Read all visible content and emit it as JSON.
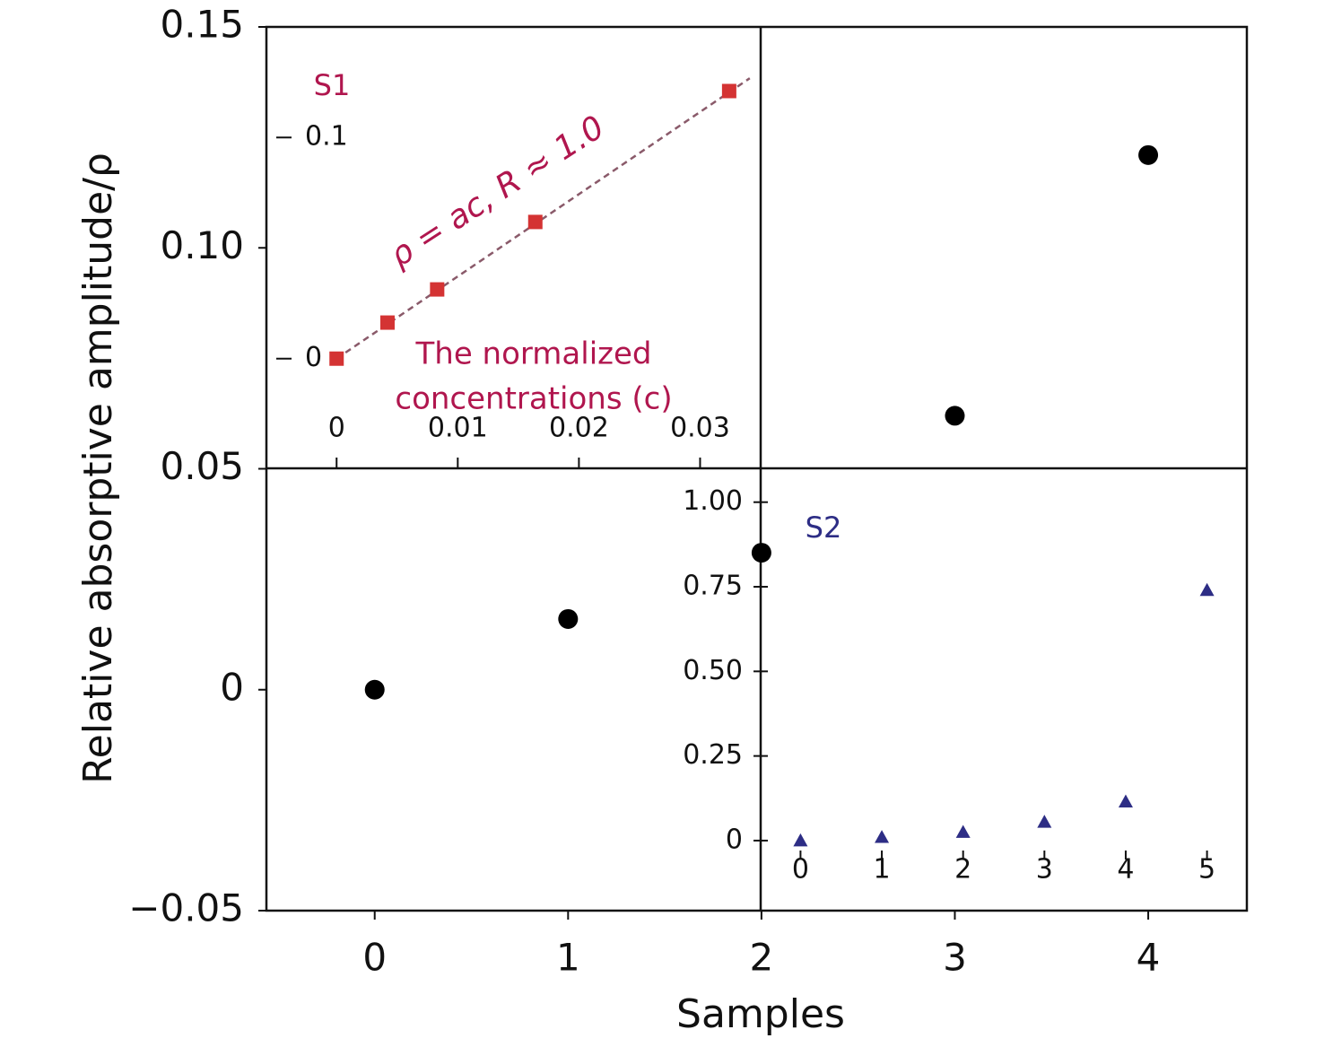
{
  "chart_data": [
    {
      "type": "scatter",
      "xlabel": "Samples",
      "ylabel": "Relative absorptive amplitude/ρ",
      "x": [
        0,
        1,
        2,
        3,
        4
      ],
      "series": [
        {
          "color": "#000000",
          "marker": "circle",
          "values": [
            0,
            0.016,
            0.031,
            0.062,
            0.121
          ]
        }
      ],
      "xlim": [
        -0.56,
        4.51
      ],
      "xticks": [
        0,
        1,
        2,
        3,
        4
      ],
      "ylim": [
        -0.05,
        0.15
      ],
      "yticks": [
        {
          "value": -0.05,
          "label": "−0.05"
        },
        0,
        0.05,
        {
          "value": 0.1,
          "label": "0.10"
        },
        0.15
      ]
    },
    {
      "type": "scatter",
      "annotation": "ρ = ac, R ≈ 1.0",
      "xlabel": [
        "The normalized",
        "concentrations (c)"
      ],
      "x": [
        0,
        0.0042,
        0.0083,
        0.0164,
        0.0324
      ],
      "series": [
        {
          "name": "S1",
          "color": "#d43333",
          "marker": "square",
          "values": [
            0,
            0.0163,
            0.0313,
            0.0618,
            0.121
          ]
        }
      ],
      "fit": {
        "x": [
          0,
          0.0341
        ],
        "values": [
          0,
          0.1268
        ],
        "color": "#8a5a6a",
        "dashed": true
      },
      "label_color": "#b0164e",
      "xlim": [
        -0.0052,
        0.035
      ],
      "xticks": [
        0,
        0.01,
        0.02,
        0.03
      ],
      "ylim": [
        -0.0496,
        0.15
      ],
      "yticks": [
        0,
        0.1
      ]
    },
    {
      "type": "scatter",
      "x": [
        0,
        1,
        2,
        3,
        4,
        5
      ],
      "series": [
        {
          "name": "S2",
          "color": "#2d2d85",
          "marker": "triangle",
          "values": [
            0,
            0.01,
            0.025,
            0.055,
            0.115,
            0.74
          ]
        }
      ],
      "label_color": "#2d2d85",
      "xlim": [
        -0.49,
        5.49
      ],
      "xticks": [
        0,
        1,
        2,
        3,
        4,
        5
      ],
      "ylim": [
        -0.207,
        1.1
      ],
      "yticks": [
        0,
        {
          "value": 0.25,
          "label": "0.25"
        },
        {
          "value": 0.5,
          "label": "0.50"
        },
        {
          "value": 0.75,
          "label": "0.75"
        },
        {
          "value": 1,
          "label": "1.00"
        }
      ]
    }
  ]
}
